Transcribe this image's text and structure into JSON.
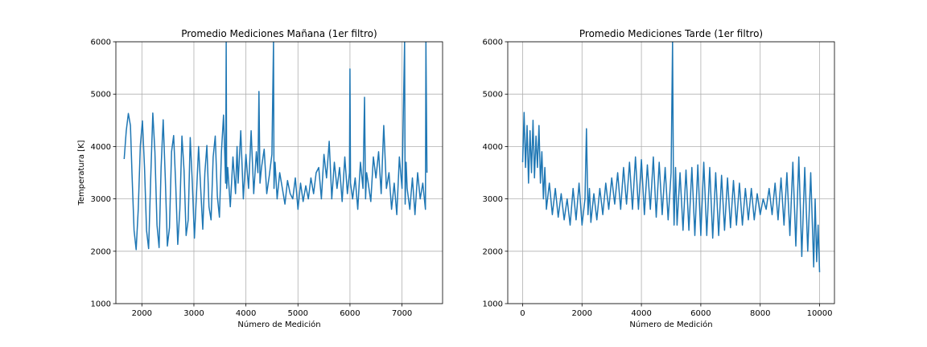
{
  "chart_data": [
    {
      "type": "line",
      "title": "Promedio Mediciones Mañana (1er filtro)",
      "xlabel": "Número de Medición",
      "ylabel": "Temperatura [K]",
      "xlim": [
        1500,
        7780
      ],
      "ylim": [
        1000,
        6000
      ],
      "xticks": [
        2000,
        3000,
        4000,
        5000,
        6000,
        7000
      ],
      "yticks": [
        1000,
        2000,
        3000,
        4000,
        5000,
        6000
      ],
      "grid": true,
      "color": "#1f77b4",
      "series": [
        {
          "x": [
            1660,
            1700,
            1740,
            1780,
            1810,
            1850,
            1890,
            1930,
            1970,
            2010,
            2050,
            2090,
            2130,
            2170,
            2210,
            2250,
            2290,
            2330,
            2370,
            2410,
            2450,
            2490,
            2530,
            2570,
            2610,
            2650,
            2690,
            2730,
            2770,
            2810,
            2850,
            2890,
            2930,
            2970,
            3010,
            3050,
            3090,
            3130,
            3170,
            3210,
            3250,
            3290,
            3330,
            3370,
            3410,
            3450,
            3490,
            3530,
            3570,
            3610,
            3620,
            3630,
            3650,
            3700,
            3750,
            3800,
            3830,
            3850,
            3900,
            3950,
            4000,
            4050,
            4100,
            4150,
            4200,
            4230,
            4250,
            4270,
            4300,
            4350,
            4400,
            4450,
            4500,
            4530,
            4540,
            4560,
            4600,
            4650,
            4700,
            4750,
            4800,
            4850,
            4900,
            4950,
            5000,
            5050,
            5100,
            5150,
            5200,
            5250,
            5300,
            5350,
            5400,
            5450,
            5500,
            5550,
            5600,
            5650,
            5700,
            5750,
            5800,
            5850,
            5900,
            5950,
            5990,
            6000,
            6010,
            6050,
            6100,
            6150,
            6200,
            6250,
            6280,
            6300,
            6320,
            6350,
            6400,
            6450,
            6500,
            6550,
            6600,
            6650,
            6700,
            6750,
            6800,
            6850,
            6900,
            6950,
            7000,
            7050,
            7060,
            7080,
            7100,
            7150,
            7200,
            7250,
            7300,
            7350,
            7400,
            7450,
            7460,
            7480
          ],
          "y": [
            3760,
            4300,
            4630,
            4400,
            3500,
            2400,
            2030,
            2800,
            4020,
            4490,
            3600,
            2400,
            2050,
            3400,
            4640,
            3900,
            2500,
            2070,
            3600,
            4510,
            3400,
            2100,
            2450,
            3900,
            4210,
            3300,
            2130,
            2800,
            4200,
            3550,
            2300,
            2600,
            4170,
            3300,
            2250,
            3100,
            4000,
            3200,
            2420,
            3500,
            4020,
            2850,
            2600,
            3800,
            4200,
            3050,
            2650,
            3900,
            4600,
            3300,
            6000,
            3200,
            3600,
            2850,
            3800,
            3100,
            4000,
            3300,
            4300,
            3000,
            3850,
            3200,
            4300,
            3100,
            3900,
            3500,
            5050,
            3300,
            3600,
            3950,
            3100,
            3450,
            3850,
            6000,
            3200,
            3700,
            3000,
            3500,
            3200,
            2900,
            3350,
            3100,
            3000,
            3400,
            2800,
            3300,
            2950,
            3250,
            3000,
            3400,
            3100,
            3500,
            3600,
            3000,
            3850,
            3400,
            4100,
            3000,
            3700,
            3200,
            3600,
            2950,
            3800,
            3100,
            3500,
            5480,
            3300,
            3000,
            3400,
            2800,
            3700,
            3200,
            4940,
            3000,
            3500,
            3300,
            2950,
            3800,
            3400,
            3900,
            3100,
            4400,
            3200,
            3500,
            2800,
            3300,
            2700,
            3800,
            3200,
            6000,
            2900,
            3700,
            3200,
            2800,
            3400,
            2700,
            3500,
            3000,
            3300,
            2800,
            6000,
            3500
          ]
        }
      ]
    },
    {
      "type": "line",
      "title": "Promedio Mediciones Tarde (1er filtro)",
      "xlabel": "Número de Medición",
      "ylabel": "",
      "xlim": [
        -500,
        10500
      ],
      "ylim": [
        1000,
        6000
      ],
      "xticks": [
        0,
        2000,
        4000,
        6000,
        8000,
        10000
      ],
      "yticks": [
        1000,
        2000,
        3000,
        4000,
        5000,
        6000
      ],
      "grid": true,
      "color": "#1f77b4",
      "series": [
        {
          "x": [
            0,
            50,
            100,
            150,
            200,
            250,
            300,
            350,
            400,
            450,
            500,
            550,
            600,
            650,
            700,
            750,
            800,
            900,
            1000,
            1100,
            1200,
            1300,
            1400,
            1500,
            1600,
            1700,
            1800,
            1900,
            2000,
            2100,
            2150,
            2200,
            2250,
            2300,
            2400,
            2500,
            2600,
            2700,
            2800,
            2900,
            3000,
            3100,
            3200,
            3300,
            3400,
            3500,
            3600,
            3700,
            3800,
            3900,
            4000,
            4100,
            4200,
            4300,
            4400,
            4500,
            4600,
            4700,
            4800,
            4900,
            5000,
            5050,
            5080,
            5100,
            5150,
            5200,
            5300,
            5400,
            5500,
            5600,
            5700,
            5800,
            5900,
            6000,
            6100,
            6200,
            6300,
            6400,
            6500,
            6600,
            6700,
            6800,
            6900,
            7000,
            7100,
            7200,
            7300,
            7400,
            7500,
            7600,
            7700,
            7800,
            7900,
            8000,
            8100,
            8200,
            8300,
            8400,
            8500,
            8600,
            8700,
            8800,
            8900,
            9000,
            9100,
            9200,
            9300,
            9400,
            9500,
            9600,
            9700,
            9800,
            9850,
            9900,
            9950,
            10000
          ],
          "y": [
            3700,
            4650,
            3600,
            4400,
            3300,
            4300,
            3500,
            4500,
            3400,
            4200,
            3600,
            4400,
            3300,
            3900,
            3000,
            3600,
            2800,
            3300,
            2700,
            3200,
            2650,
            3100,
            2600,
            3000,
            2500,
            3200,
            2600,
            3300,
            2500,
            3000,
            4340,
            2700,
            3200,
            2550,
            3100,
            2600,
            3200,
            2700,
            3300,
            2800,
            3400,
            2900,
            3500,
            2800,
            3600,
            2900,
            3700,
            2800,
            3800,
            2800,
            3750,
            2700,
            3650,
            2800,
            3800,
            2650,
            3700,
            2700,
            3600,
            2600,
            3500,
            6000,
            3000,
            2500,
            3600,
            2500,
            3500,
            2400,
            3550,
            2400,
            3600,
            2300,
            3650,
            2300,
            3700,
            2300,
            3600,
            2250,
            3500,
            2300,
            3450,
            2400,
            3400,
            2450,
            3350,
            2500,
            3300,
            2500,
            3200,
            2600,
            3200,
            2600,
            3100,
            2700,
            3000,
            2800,
            3200,
            2700,
            3300,
            2600,
            3400,
            2500,
            3500,
            2300,
            3700,
            2100,
            3800,
            1900,
            3600,
            2000,
            3500,
            1700,
            3000,
            1800,
            2500,
            1600
          ]
        }
      ]
    }
  ]
}
